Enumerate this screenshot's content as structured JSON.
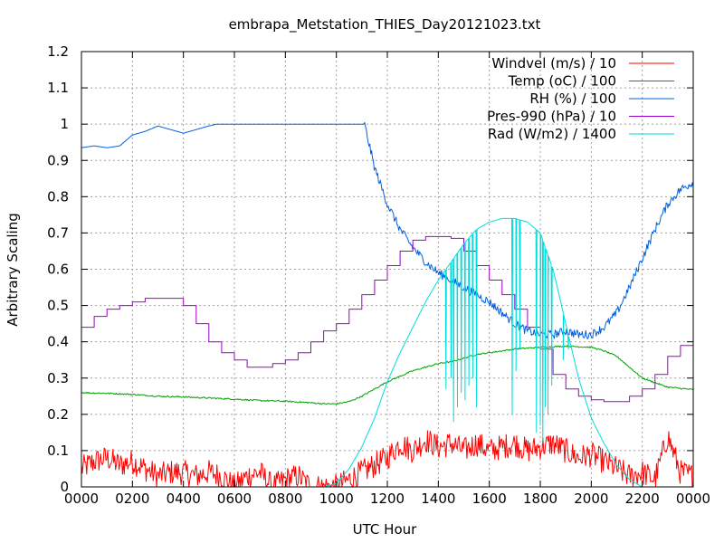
{
  "chart_data": {
    "type": "line",
    "title": "embrapa_Metstation_THIES_Day20121023.txt",
    "xlabel": "UTC Hour",
    "ylabel": "Arbitrary Scaling",
    "xlim": [
      0,
      24
    ],
    "ylim": [
      0,
      1.2
    ],
    "grid": true,
    "legend_position": "top-right",
    "x_ticks": [
      {
        "value": 0,
        "label": "0000"
      },
      {
        "value": 2,
        "label": "0200"
      },
      {
        "value": 4,
        "label": "0400"
      },
      {
        "value": 6,
        "label": "0600"
      },
      {
        "value": 8,
        "label": "0800"
      },
      {
        "value": 10,
        "label": "1000"
      },
      {
        "value": 12,
        "label": "1200"
      },
      {
        "value": 14,
        "label": "1400"
      },
      {
        "value": 16,
        "label": "1600"
      },
      {
        "value": 18,
        "label": "1800"
      },
      {
        "value": 20,
        "label": "2000"
      },
      {
        "value": 22,
        "label": "2200"
      },
      {
        "value": 24,
        "label": "0000"
      }
    ],
    "y_ticks": [
      {
        "value": 0,
        "label": "0"
      },
      {
        "value": 0.1,
        "label": "0.1"
      },
      {
        "value": 0.2,
        "label": "0.2"
      },
      {
        "value": 0.3,
        "label": "0.3"
      },
      {
        "value": 0.4,
        "label": "0.4"
      },
      {
        "value": 0.5,
        "label": "0.5"
      },
      {
        "value": 0.6,
        "label": "0.6"
      },
      {
        "value": 0.7,
        "label": "0.7"
      },
      {
        "value": 0.8,
        "label": "0.8"
      },
      {
        "value": 0.9,
        "label": "0.9"
      },
      {
        "value": 1,
        "label": "1"
      },
      {
        "value": 1.1,
        "label": "1.1"
      },
      {
        "value": 1.2,
        "label": "1.2"
      }
    ],
    "series": [
      {
        "name": "Windvel (m/s) / 10",
        "color": "#ff0000",
        "x": [
          0,
          0.5,
          1,
          1.5,
          2,
          2.5,
          3,
          3.5,
          4,
          4.5,
          5,
          5.5,
          6,
          6.5,
          7,
          7.5,
          8,
          8.5,
          9,
          9.5,
          10,
          10.5,
          11,
          11.5,
          12,
          12.5,
          13,
          13.5,
          14,
          14.5,
          15,
          15.5,
          16,
          16.5,
          17,
          17.5,
          18,
          18.5,
          19,
          19.5,
          20,
          20.5,
          21,
          21.5,
          22,
          22.5,
          23,
          23.5,
          24
        ],
        "values": [
          0.05,
          0.07,
          0.08,
          0.06,
          0.07,
          0.05,
          0.03,
          0.04,
          0.04,
          0.03,
          0.04,
          0.03,
          0.0,
          0.03,
          0.04,
          0.0,
          0.02,
          0.03,
          0.0,
          0.0,
          0.0,
          0.02,
          0.04,
          0.06,
          0.08,
          0.12,
          0.1,
          0.13,
          0.11,
          0.12,
          0.1,
          0.12,
          0.1,
          0.11,
          0.12,
          0.1,
          0.11,
          0.12,
          0.1,
          0.08,
          0.09,
          0.07,
          0.05,
          0.03,
          0.04,
          0.02,
          0.14,
          0.04,
          0.03
        ],
        "noise": 0.035,
        "clip_min": 0
      },
      {
        "name": "Temp (oC) / 100",
        "color": "#00a000",
        "x": [
          0,
          1,
          2,
          3,
          4,
          5,
          6,
          7,
          8,
          9,
          9.5,
          10,
          10.5,
          11,
          12,
          13,
          14,
          14.5,
          15,
          15.5,
          16,
          17,
          18,
          19,
          20,
          20.5,
          21,
          22,
          23,
          24
        ],
        "values": [
          0.26,
          0.258,
          0.255,
          0.25,
          0.248,
          0.245,
          0.242,
          0.238,
          0.236,
          0.232,
          0.229,
          0.229,
          0.235,
          0.25,
          0.29,
          0.32,
          0.34,
          0.345,
          0.355,
          0.365,
          0.37,
          0.38,
          0.385,
          0.388,
          0.385,
          0.375,
          0.36,
          0.3,
          0.275,
          0.268
        ],
        "noise": 0.002
      },
      {
        "name": "RH (%) / 100",
        "color": "#0060e0",
        "x": [
          0,
          0.5,
          1,
          1.5,
          2,
          2.5,
          3,
          3.5,
          4,
          4.5,
          5,
          5.3,
          6,
          7,
          8,
          9,
          10,
          10.5,
          11,
          11.1,
          11.5,
          12,
          12.5,
          13,
          13.5,
          14,
          14.5,
          15,
          15.5,
          16,
          16.5,
          17,
          17.5,
          18,
          18.5,
          19,
          19.5,
          20,
          20.5,
          21,
          21.5,
          22,
          22.5,
          23,
          23.5,
          24
        ],
        "values": [
          0.935,
          0.94,
          0.935,
          0.94,
          0.97,
          0.98,
          0.995,
          0.985,
          0.975,
          0.985,
          0.995,
          1.0,
          1.0,
          1.0,
          1.0,
          1.0,
          1.0,
          1.0,
          1.0,
          1.0,
          0.88,
          0.78,
          0.71,
          0.66,
          0.62,
          0.59,
          0.57,
          0.55,
          0.53,
          0.51,
          0.48,
          0.45,
          0.43,
          0.42,
          0.42,
          0.43,
          0.42,
          0.42,
          0.44,
          0.48,
          0.55,
          0.63,
          0.71,
          0.78,
          0.82,
          0.84
        ],
        "noise": 0.012,
        "noise_from": 11.1
      },
      {
        "name": "Pres-990 (hPa) / 10",
        "color": "#a000c8",
        "x": [
          0,
          0.5,
          1,
          1.5,
          2,
          2.5,
          3,
          3.5,
          3.8,
          4,
          4.5,
          5,
          5.5,
          6,
          6.5,
          7,
          7.5,
          8,
          8.5,
          9,
          9.5,
          10,
          10.5,
          11,
          11.5,
          12,
          12.5,
          13,
          13.5,
          14,
          14.5,
          15,
          15.5,
          16,
          16.5,
          17,
          17.5,
          18,
          18.5,
          19,
          19.5,
          20,
          20.5,
          21,
          21.5,
          22,
          22.5,
          23,
          23.5,
          24
        ],
        "values": [
          0.44,
          0.47,
          0.49,
          0.5,
          0.51,
          0.52,
          0.52,
          0.52,
          0.52,
          0.5,
          0.45,
          0.4,
          0.37,
          0.35,
          0.33,
          0.33,
          0.34,
          0.35,
          0.37,
          0.4,
          0.43,
          0.45,
          0.49,
          0.53,
          0.57,
          0.61,
          0.65,
          0.68,
          0.69,
          0.69,
          0.685,
          0.65,
          0.61,
          0.57,
          0.53,
          0.49,
          0.44,
          0.38,
          0.31,
          0.27,
          0.25,
          0.24,
          0.235,
          0.235,
          0.25,
          0.27,
          0.31,
          0.36,
          0.39,
          0.42
        ],
        "step": true
      },
      {
        "name": "Rad (W/m2) / 1400",
        "color": "#00dcdc",
        "x": [
          0,
          9.5,
          10,
          10.5,
          11,
          11.5,
          12,
          12.5,
          13,
          13.5,
          14,
          14.5,
          15,
          15.5,
          16,
          16.5,
          17,
          17.5,
          18,
          18.5,
          19,
          19.5,
          20,
          20.5,
          21,
          21.5,
          22,
          24
        ],
        "values": [
          0,
          0,
          0.01,
          0.05,
          0.11,
          0.19,
          0.29,
          0.37,
          0.44,
          0.51,
          0.57,
          0.62,
          0.67,
          0.71,
          0.73,
          0.74,
          0.74,
          0.73,
          0.7,
          0.6,
          0.45,
          0.3,
          0.19,
          0.12,
          0.06,
          0.02,
          0,
          0
        ],
        "spikes": [
          {
            "x": 14.3,
            "y": 0.27
          },
          {
            "x": 14.5,
            "y": 0.3
          },
          {
            "x": 14.6,
            "y": 0.18
          },
          {
            "x": 14.75,
            "y": 0.22
          },
          {
            "x": 14.9,
            "y": 0.26
          },
          {
            "x": 15.05,
            "y": 0.24
          },
          {
            "x": 15.2,
            "y": 0.28
          },
          {
            "x": 15.35,
            "y": 0.3
          },
          {
            "x": 15.5,
            "y": 0.22
          },
          {
            "x": 16.9,
            "y": 0.2
          },
          {
            "x": 17.05,
            "y": 0.32
          },
          {
            "x": 17.2,
            "y": 0.38
          },
          {
            "x": 17.85,
            "y": 0.15
          },
          {
            "x": 18.0,
            "y": 0.17
          },
          {
            "x": 18.1,
            "y": 0.12
          },
          {
            "x": 18.2,
            "y": 0.22
          },
          {
            "x": 18.3,
            "y": 0.2
          },
          {
            "x": 18.45,
            "y": 0.28
          },
          {
            "x": 18.9,
            "y": 0.35
          },
          {
            "x": 19.1,
            "y": 0.38
          }
        ]
      }
    ]
  }
}
